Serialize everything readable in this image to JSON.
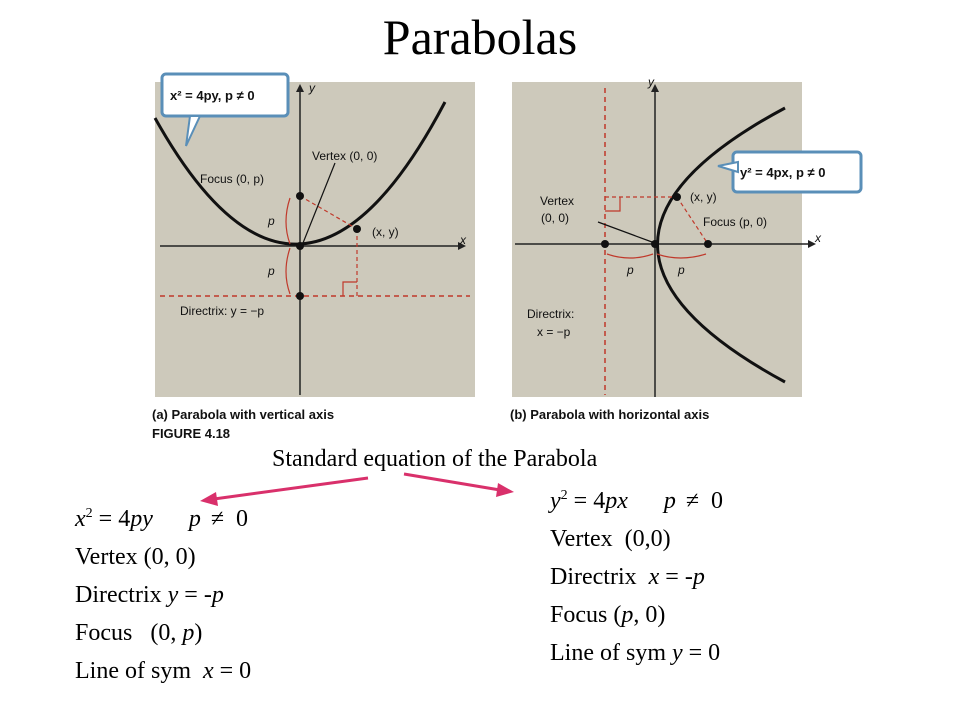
{
  "title": "Parabolas",
  "figure": {
    "left": {
      "callout": "x² = 4py, p ≠ 0",
      "y_axis": "y",
      "x_axis": "x",
      "vertex": "Vertex (0, 0)",
      "focus": "Focus (0, p)",
      "point": "(x, y)",
      "p_label": "p",
      "directrix": "Directrix: y = −p",
      "caption": "(a)  Parabola with vertical axis"
    },
    "right": {
      "callout": "y² = 4px, p ≠ 0",
      "y_axis": "y",
      "x_axis": "x",
      "vertex_line1": "Vertex",
      "vertex_line2": "(0, 0)",
      "focus": "Focus (p, 0)",
      "point": "(x, y)",
      "p_label": "p",
      "directrix_line1": "Directrix:",
      "directrix_line2": "x = −p",
      "caption": "(b)  Parabola with horizontal axis"
    },
    "figure_label": "FIGURE 4.18"
  },
  "subtitle": "Standard equation of the Parabola",
  "left_eq": {
    "eq_var": "x",
    "eq_exp": "2",
    "eq_mid": " = 4",
    "eq_py": "py",
    "eq_p": "p",
    "eq_neq": "≠",
    "eq_zero": "0",
    "vertex": "Vertex  (0, 0)",
    "directrix_label": "Directrix",
    "directrix_var": "y",
    "directrix_rest": " = -",
    "directrix_p": "p",
    "focus_label": "Focus   (0, ",
    "focus_p": "p",
    "focus_close": ")",
    "sym_label": "Line of sym  ",
    "sym_var": "x",
    "sym_rest": " = 0"
  },
  "right_eq": {
    "eq_var": "y",
    "eq_exp": "2",
    "eq_mid": " = 4",
    "eq_px": "px",
    "eq_p": "p",
    "eq_neq": "≠",
    "eq_zero": "0",
    "vertex": "Vertex  (0,0)",
    "directrix_label": "Directrix  ",
    "directrix_var": "x",
    "directrix_rest": " = -",
    "directrix_p": "p",
    "focus_label": "Focus (",
    "focus_p": "p",
    "focus_close": ", 0)",
    "sym_label": "Line of sym ",
    "sym_var": "y",
    "sym_rest": " = 0"
  },
  "colors": {
    "panel": "#cdc9bb",
    "callout_border": "#5a8fb8",
    "arrow": "#d9306b",
    "dashed": "#c0392b"
  }
}
